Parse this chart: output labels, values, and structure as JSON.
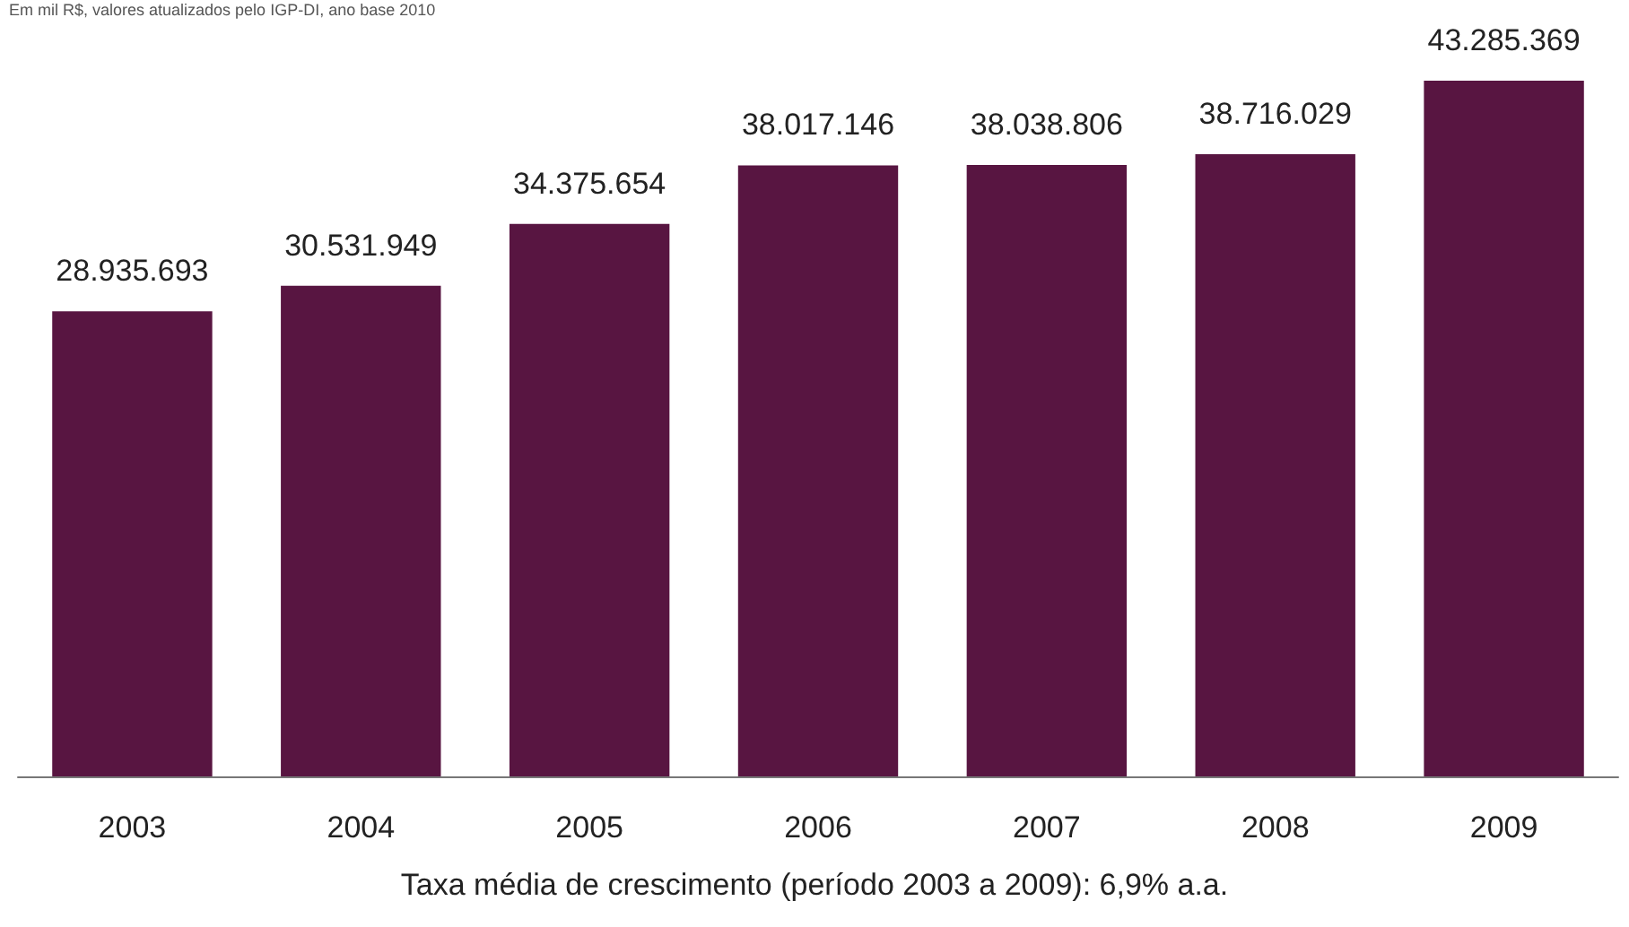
{
  "chart_data": {
    "type": "bar",
    "subtitle": "Em mil R$, valores atualizados pelo IGP-DI, ano base 2010",
    "categories": [
      "2003",
      "2004",
      "2005",
      "2006",
      "2007",
      "2008",
      "2009"
    ],
    "values": [
      28935693,
      30531949,
      34375654,
      38017146,
      38038806,
      38716029,
      43285369
    ],
    "color": "#581541",
    "value_labels": [
      "28.935.693",
      "30.531.949",
      "34.375.654",
      "38.017.146",
      "38.038.806",
      "38.716.029",
      "43.285.369"
    ],
    "annotations": [
      "Taxa média de crescimento (período 2003 a 2009): 6,9% a.a."
    ]
  }
}
